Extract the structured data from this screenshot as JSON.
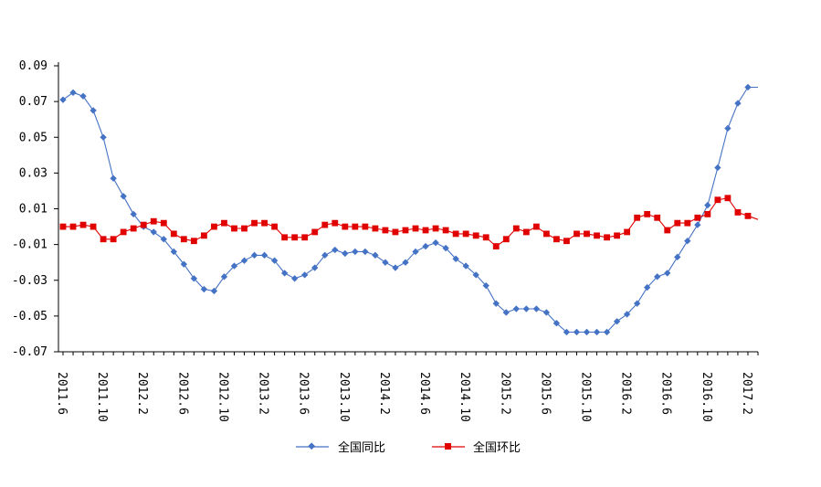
{
  "chart_data": {
    "type": "line",
    "title": "",
    "xlabel": "",
    "ylabel": "",
    "ylim": [
      -0.07,
      0.09
    ],
    "yticks": [
      "0.09",
      "0.07",
      "0.05",
      "0.03",
      "0.01",
      "-0.01",
      "-0.03",
      "-0.05",
      "-0.07"
    ],
    "ytick_values": [
      0.09,
      0.07,
      0.05,
      0.03,
      0.01,
      -0.01,
      -0.03,
      -0.05,
      -0.07
    ],
    "xtick_labels": [
      "2011.6",
      "2011.10",
      "2012.2",
      "2012.6",
      "2012.10",
      "2013.2",
      "2013.6",
      "2013.10",
      "2014.2",
      "2014.6",
      "2014.10",
      "2015.2",
      "2015.6",
      "2015.10",
      "2016.2",
      "2016.6",
      "2016.10",
      "2017.2"
    ],
    "grid": false,
    "legend_position": "bottom",
    "x": [
      "2011.6",
      "2011.7",
      "2011.8",
      "2011.9",
      "2011.10",
      "2011.11",
      "2011.12",
      "2012.1",
      "2012.2",
      "2012.3",
      "2012.4",
      "2012.5",
      "2012.6",
      "2012.7",
      "2012.8",
      "2012.9",
      "2012.10",
      "2012.11",
      "2012.12",
      "2013.1",
      "2013.2",
      "2013.3",
      "2013.4",
      "2013.5",
      "2013.6",
      "2013.7",
      "2013.8",
      "2013.9",
      "2013.10",
      "2013.11",
      "2013.12",
      "2014.1",
      "2014.2",
      "2014.3",
      "2014.4",
      "2014.5",
      "2014.6",
      "2014.7",
      "2014.8",
      "2014.9",
      "2014.10",
      "2014.11",
      "2014.12",
      "2015.1",
      "2015.2",
      "2015.3",
      "2015.4",
      "2015.5",
      "2015.6",
      "2015.7",
      "2015.8",
      "2015.9",
      "2015.10",
      "2015.11",
      "2015.12",
      "2016.1",
      "2016.2",
      "2016.3",
      "2016.4",
      "2016.5",
      "2016.6",
      "2016.7",
      "2016.8",
      "2016.9",
      "2016.10",
      "2016.11",
      "2016.12",
      "2017.1",
      "2017.2",
      "2017.3"
    ],
    "series": [
      {
        "name": "全国同比",
        "color": "#4472C4",
        "marker": "diamond",
        "values": [
          0.071,
          0.075,
          0.073,
          0.065,
          0.05,
          0.027,
          0.017,
          0.007,
          0.0,
          -0.003,
          -0.007,
          -0.014,
          -0.021,
          -0.029,
          -0.035,
          -0.036,
          -0.028,
          -0.022,
          -0.019,
          -0.016,
          -0.016,
          -0.019,
          -0.026,
          -0.029,
          -0.027,
          -0.023,
          -0.016,
          -0.013,
          -0.015,
          -0.014,
          -0.014,
          -0.016,
          -0.02,
          -0.023,
          -0.02,
          -0.014,
          -0.011,
          -0.009,
          -0.012,
          -0.018,
          -0.022,
          -0.027,
          -0.033,
          -0.043,
          -0.048,
          -0.046,
          -0.046,
          -0.046,
          -0.048,
          -0.054,
          -0.059,
          -0.059,
          -0.059,
          -0.059,
          -0.059,
          -0.053,
          -0.049,
          -0.043,
          -0.034,
          -0.028,
          -0.026,
          -0.017,
          -0.008,
          0.001,
          0.012,
          0.033,
          0.055,
          0.069,
          0.078,
          0.078
        ]
      },
      {
        "name": "全国环比",
        "color": "#E00000",
        "marker": "square",
        "values": [
          0.0,
          0.0,
          0.001,
          0.0,
          -0.007,
          -0.007,
          -0.003,
          -0.001,
          0.001,
          0.003,
          0.002,
          -0.004,
          -0.007,
          -0.008,
          -0.005,
          0.0,
          0.002,
          -0.001,
          -0.001,
          0.002,
          0.002,
          0.0,
          -0.006,
          -0.006,
          -0.006,
          -0.003,
          0.001,
          0.002,
          0.0,
          0.0,
          0.0,
          -0.001,
          -0.002,
          -0.003,
          -0.002,
          -0.001,
          -0.002,
          -0.001,
          -0.002,
          -0.004,
          -0.004,
          -0.005,
          -0.006,
          -0.011,
          -0.007,
          -0.001,
          -0.003,
          0.0,
          -0.004,
          -0.007,
          -0.008,
          -0.004,
          -0.004,
          -0.005,
          -0.006,
          -0.005,
          -0.003,
          0.005,
          0.007,
          0.005,
          -0.002,
          0.002,
          0.002,
          0.005,
          0.007,
          0.015,
          0.016,
          0.008,
          0.006,
          0.004
        ]
      }
    ]
  }
}
